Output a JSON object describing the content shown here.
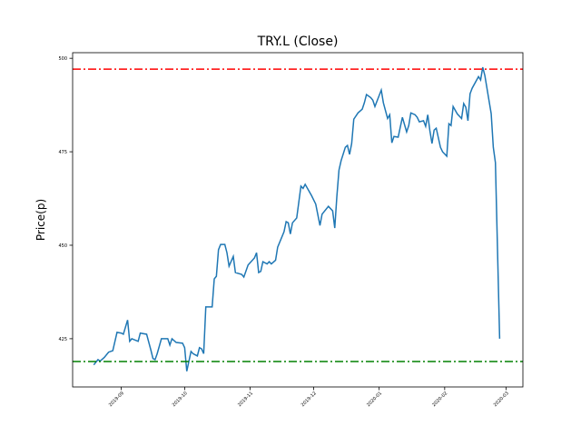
{
  "chart_data": {
    "type": "line",
    "title": "TRY.L (Close)",
    "y_label": "Price(p)",
    "x": [
      18127,
      18129,
      18130,
      18132,
      18134,
      18136,
      18138,
      18140,
      18141,
      18143,
      18144,
      18145,
      18148,
      18149,
      18152,
      18154,
      18155,
      18156,
      18157,
      18159,
      18162,
      18163,
      18164,
      18166,
      18169,
      18170,
      18171,
      18173,
      18174,
      18176,
      18177,
      18178,
      18179,
      18180,
      18183,
      18184,
      18185,
      18186,
      18187,
      18189,
      18190,
      18191,
      18193,
      18194,
      18197,
      18198,
      18200,
      18203,
      18204,
      18205,
      18206,
      18207,
      18209,
      18210,
      18211,
      18213,
      18214,
      18217,
      18218,
      18219,
      18220,
      18221,
      18223,
      18225,
      18226,
      18227,
      18230,
      18232,
      18234,
      18235,
      18238,
      18240,
      18241,
      18242,
      18243,
      18244,
      18246,
      18247,
      18248,
      18249,
      18250,
      18252,
      18254,
      18255,
      18256,
      18258,
      18259,
      18260,
      18263,
      18264,
      18266,
      18267,
      18268,
      18269,
      18271,
      18272,
      18273,
      18275,
      18276,
      18277,
      18279,
      18280,
      18281,
      18283,
      18284,
      18285,
      18286,
      18287,
      18288,
      18289,
      18291,
      18292,
      18294,
      18295,
      18296,
      18297,
      18299,
      18301,
      18302,
      18303,
      18304,
      18305,
      18306,
      18309,
      18310,
      18311,
      18312,
      18315,
      18316,
      18317,
      18319
    ],
    "series": [
      {
        "color": "#1f77b4",
        "values": [
          418,
          419.4,
          419,
          420,
          421.4,
          421.8,
          426.7,
          426.5,
          426.2,
          430,
          424.3,
          425,
          424.3,
          426.5,
          426.2,
          422,
          419.7,
          419.4,
          421,
          425,
          425,
          423.3,
          425,
          424,
          423.8,
          422.6,
          416.3,
          421.6,
          421,
          420.4,
          422.6,
          422.3,
          421,
          433.5,
          433.5,
          441,
          441.7,
          448.8,
          450.2,
          450.2,
          448,
          444.4,
          447,
          442.7,
          442.2,
          441.5,
          444.7,
          446.6,
          448,
          442.7,
          443,
          445.6,
          445,
          445.6,
          445,
          446,
          449.5,
          453.6,
          456.3,
          456,
          453,
          456,
          457.3,
          465.8,
          465.2,
          466.3,
          463.3,
          461,
          455.3,
          458.3,
          460.4,
          459.2,
          454.6,
          463.1,
          470.1,
          472.6,
          476.2,
          476.7,
          474.3,
          477.2,
          483.7,
          485.4,
          486.4,
          488.1,
          490.3,
          489.5,
          488.8,
          487.1,
          491.5,
          488.1,
          483.9,
          484.9,
          477.4,
          479.1,
          478.9,
          481.6,
          484.2,
          480.3,
          482,
          485.4,
          484.9,
          484.2,
          483,
          483.3,
          481.8,
          484.9,
          480.6,
          477.2,
          480.8,
          481.3,
          476.2,
          475,
          473.8,
          482.5,
          482,
          487.1,
          485.1,
          483.9,
          487.9,
          486.9,
          483.3,
          490.5,
          492,
          495.1,
          494.2,
          497.6,
          495.4,
          485.2,
          476.2,
          472.1,
          425
        ]
      }
    ],
    "reference_lines": [
      {
        "value": 497.1,
        "color": "#ff0000"
      },
      {
        "value": 418.9,
        "color": "#008000"
      }
    ],
    "xlim": [
      18117,
      18330
    ],
    "xticks": [
      {
        "value": 18140,
        "label": "2019-09"
      },
      {
        "value": 18170,
        "label": "2019-10"
      },
      {
        "value": 18201,
        "label": "2019-11"
      },
      {
        "value": 18231,
        "label": "2019-12"
      },
      {
        "value": 18262,
        "label": "2020-01"
      },
      {
        "value": 18293,
        "label": "2020-02"
      },
      {
        "value": 18322,
        "label": "2020-03"
      }
    ],
    "ylim": [
      412.1,
      501.5
    ],
    "yticks": [
      425,
      450,
      475,
      500
    ]
  }
}
